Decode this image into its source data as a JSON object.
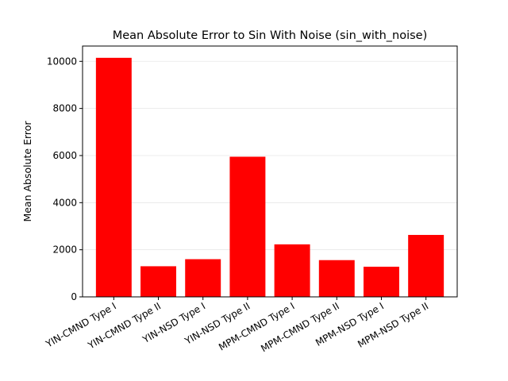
{
  "chart_data": {
    "type": "bar",
    "title": "Mean Absolute Error to Sin With Noise (sin_with_noise)",
    "xlabel": "",
    "ylabel": "Mean Absolute Error",
    "categories": [
      "YIN-CMND Type I",
      "YIN-CMND Type II",
      "YIN-NSD Type I",
      "YIN-NSD Type II",
      "MPM-CMND Type I",
      "MPM-CMND Type II",
      "MPM-NSD Type I",
      "MPM-NSD Type II"
    ],
    "values": [
      10150,
      1300,
      1600,
      5950,
      2230,
      1560,
      1280,
      2630
    ],
    "ylim": [
      0,
      10650
    ],
    "yticks": [
      0,
      2000,
      4000,
      6000,
      8000,
      10000
    ],
    "bar_color": "#ff0000",
    "grid": "horizontal-light"
  }
}
